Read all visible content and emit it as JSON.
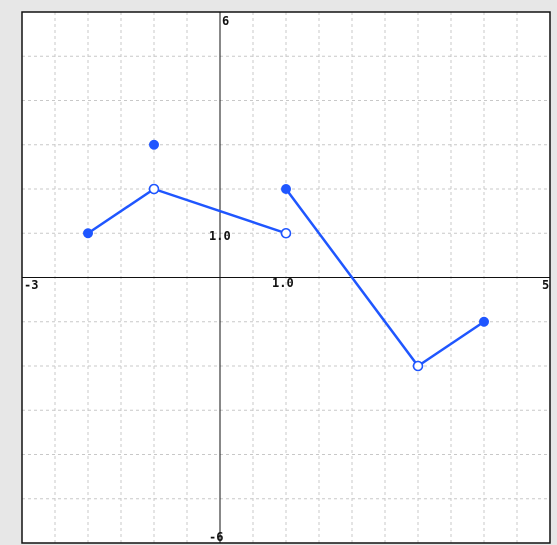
{
  "chart_data": {
    "type": "line",
    "title": "",
    "xlabel": "",
    "ylabel": "",
    "xlim": [
      -3,
      5
    ],
    "ylim": [
      -6,
      6
    ],
    "grid": true,
    "grid_step": {
      "x": 0.5,
      "y": 1
    },
    "axis_labels": {
      "x_min": "-3",
      "x_max": "5",
      "y_max": "6",
      "y_min": "-6",
      "x_unit": "1.0",
      "y_unit": "1.0"
    },
    "series": [
      {
        "segments": [
          {
            "points": [
              {
                "x": -2,
                "y": 1
              },
              {
                "x": -1,
                "y": 2
              },
              {
                "x": 1,
                "y": 1
              }
            ]
          },
          {
            "points": [
              {
                "x": 1,
                "y": 2
              },
              {
                "x": 3,
                "y": -2
              },
              {
                "x": 4,
                "y": -1
              }
            ]
          }
        ],
        "filled_points": [
          {
            "x": -2,
            "y": 1
          },
          {
            "x": -1,
            "y": 3
          },
          {
            "x": 1,
            "y": 2
          },
          {
            "x": 4,
            "y": -1
          }
        ],
        "open_points": [
          {
            "x": -1,
            "y": 2
          },
          {
            "x": 1,
            "y": 1
          },
          {
            "x": 3,
            "y": -2
          }
        ]
      }
    ],
    "colors": {
      "line": "#1f56ff",
      "grid": "#c8c8c8",
      "axis": "#111111",
      "plot_bg": "#ffffff",
      "frame": "#111111"
    }
  }
}
